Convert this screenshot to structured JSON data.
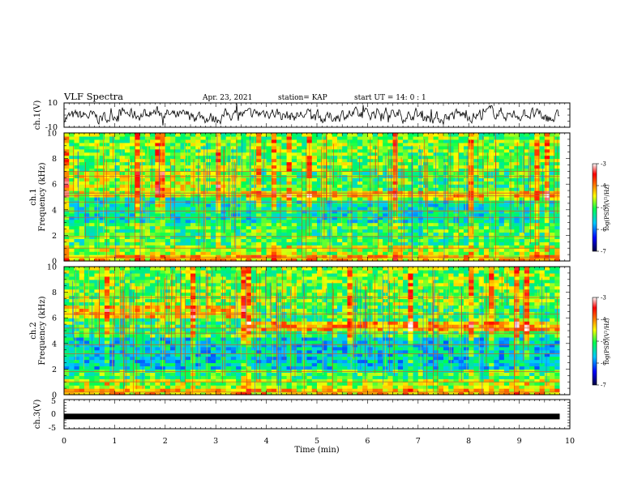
{
  "header": {
    "title": "VLF Spectra",
    "date": "Apr. 23, 2021",
    "station": "station= KAP",
    "start": "start  UT =   14: 0  : 1"
  },
  "chart_data": [
    {
      "type": "line",
      "panel": "ch1-waveform",
      "ylabel": "ch.1(V)",
      "ylim": [
        -10,
        10
      ],
      "yticks": [
        "10",
        "-10"
      ],
      "xlim": [
        0,
        10
      ],
      "color": "#000000"
    },
    {
      "type": "heatmap",
      "panel": "ch1-spectrogram",
      "ylabel": "ch.1\nFrequency (kHz)",
      "ylim": [
        0,
        10
      ],
      "yticks": [
        "0",
        "2",
        "4",
        "6",
        "8",
        "10"
      ],
      "xlim": [
        0,
        10
      ],
      "data_end_min": 9.8,
      "transition_min": 3.6,
      "colorbar": {
        "label": "log(PSD)(V²/Hz)",
        "range": [
          -7,
          -3
        ],
        "ticks": [
          "-3",
          "-4",
          "-5",
          "-6",
          "-7"
        ],
        "colors": [
          "#000040",
          "#0000ff",
          "#00c8ff",
          "#00ff50",
          "#ffff00",
          "#ff8000",
          "#ff0000",
          "#ffffff"
        ]
      }
    },
    {
      "type": "heatmap",
      "panel": "ch2-spectrogram",
      "ylabel": "ch.2\nFrequency (kHz)",
      "ylim": [
        0,
        10
      ],
      "yticks": [
        "0",
        "2",
        "4",
        "6",
        "8",
        "10"
      ],
      "xlim": [
        0,
        10
      ],
      "data_end_min": 9.8,
      "transition_min": 3.6,
      "colorbar": {
        "label": "log(PSD)(V²/Hz)",
        "range": [
          -7,
          -3
        ],
        "ticks": [
          "-3",
          "-4",
          "-5",
          "-6",
          "-7"
        ],
        "colors": [
          "#000040",
          "#0000ff",
          "#00c8ff",
          "#00ff50",
          "#ffff00",
          "#ff8000",
          "#ff0000",
          "#ffffff"
        ]
      }
    },
    {
      "type": "line",
      "panel": "ch3-waveform",
      "ylabel": "ch.3(V)",
      "ylim": [
        -5,
        5
      ],
      "yticks": [
        "5",
        "0",
        "-5"
      ],
      "xlim": [
        0,
        10
      ],
      "level": -0.8,
      "color": "#000000"
    }
  ],
  "xaxis": {
    "label": "Time (min)",
    "ticks": [
      "0",
      "1",
      "2",
      "3",
      "4",
      "5",
      "6",
      "7",
      "8",
      "9",
      "10"
    ]
  }
}
